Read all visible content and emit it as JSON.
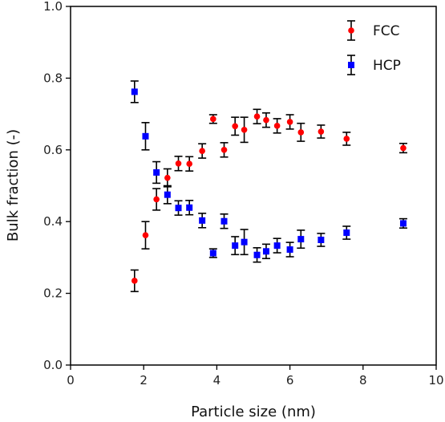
{
  "chart_data": {
    "type": "scatter",
    "xlabel": "Particle size (nm)",
    "ylabel": "Bulk fraction (-)",
    "xlim": [
      0,
      10
    ],
    "ylim": [
      0.0,
      1.0
    ],
    "x_ticks": [
      "0",
      "2",
      "4",
      "6",
      "8",
      "10"
    ],
    "y_ticks": [
      "0.0",
      "0.2",
      "0.4",
      "0.6",
      "0.8",
      "1.0"
    ],
    "grid": false,
    "legend_position": "top-right",
    "error_bars": true,
    "series": [
      {
        "name": "FCC",
        "color": "#ff0000",
        "marker": "circle",
        "points": [
          {
            "x": 1.75,
            "y": 0.235,
            "err": 0.03
          },
          {
            "x": 2.05,
            "y": 0.362,
            "err": 0.038
          },
          {
            "x": 2.35,
            "y": 0.462,
            "err": 0.03
          },
          {
            "x": 2.65,
            "y": 0.522,
            "err": 0.025
          },
          {
            "x": 2.95,
            "y": 0.562,
            "err": 0.02
          },
          {
            "x": 3.25,
            "y": 0.561,
            "err": 0.02
          },
          {
            "x": 3.6,
            "y": 0.597,
            "err": 0.02
          },
          {
            "x": 3.9,
            "y": 0.686,
            "err": 0.012
          },
          {
            "x": 4.2,
            "y": 0.6,
            "err": 0.02
          },
          {
            "x": 4.5,
            "y": 0.666,
            "err": 0.025
          },
          {
            "x": 4.75,
            "y": 0.656,
            "err": 0.035
          },
          {
            "x": 5.1,
            "y": 0.693,
            "err": 0.02
          },
          {
            "x": 5.35,
            "y": 0.683,
            "err": 0.02
          },
          {
            "x": 5.65,
            "y": 0.667,
            "err": 0.02
          },
          {
            "x": 6.0,
            "y": 0.678,
            "err": 0.02
          },
          {
            "x": 6.3,
            "y": 0.649,
            "err": 0.025
          },
          {
            "x": 6.85,
            "y": 0.651,
            "err": 0.018
          },
          {
            "x": 7.55,
            "y": 0.631,
            "err": 0.018
          },
          {
            "x": 9.1,
            "y": 0.605,
            "err": 0.013
          }
        ]
      },
      {
        "name": "HCP",
        "color": "#0000ff",
        "marker": "square",
        "points": [
          {
            "x": 1.75,
            "y": 0.762,
            "err": 0.03
          },
          {
            "x": 2.05,
            "y": 0.638,
            "err": 0.038
          },
          {
            "x": 2.35,
            "y": 0.537,
            "err": 0.03
          },
          {
            "x": 2.65,
            "y": 0.475,
            "err": 0.025
          },
          {
            "x": 2.95,
            "y": 0.438,
            "err": 0.02
          },
          {
            "x": 3.25,
            "y": 0.439,
            "err": 0.02
          },
          {
            "x": 3.6,
            "y": 0.403,
            "err": 0.02
          },
          {
            "x": 3.9,
            "y": 0.312,
            "err": 0.012
          },
          {
            "x": 4.2,
            "y": 0.401,
            "err": 0.02
          },
          {
            "x": 4.5,
            "y": 0.333,
            "err": 0.025
          },
          {
            "x": 4.75,
            "y": 0.343,
            "err": 0.035
          },
          {
            "x": 5.1,
            "y": 0.307,
            "err": 0.02
          },
          {
            "x": 5.35,
            "y": 0.317,
            "err": 0.02
          },
          {
            "x": 5.65,
            "y": 0.333,
            "err": 0.02
          },
          {
            "x": 6.0,
            "y": 0.322,
            "err": 0.02
          },
          {
            "x": 6.3,
            "y": 0.351,
            "err": 0.025
          },
          {
            "x": 6.85,
            "y": 0.349,
            "err": 0.018
          },
          {
            "x": 7.55,
            "y": 0.369,
            "err": 0.018
          },
          {
            "x": 9.1,
            "y": 0.395,
            "err": 0.013
          }
        ]
      }
    ]
  }
}
